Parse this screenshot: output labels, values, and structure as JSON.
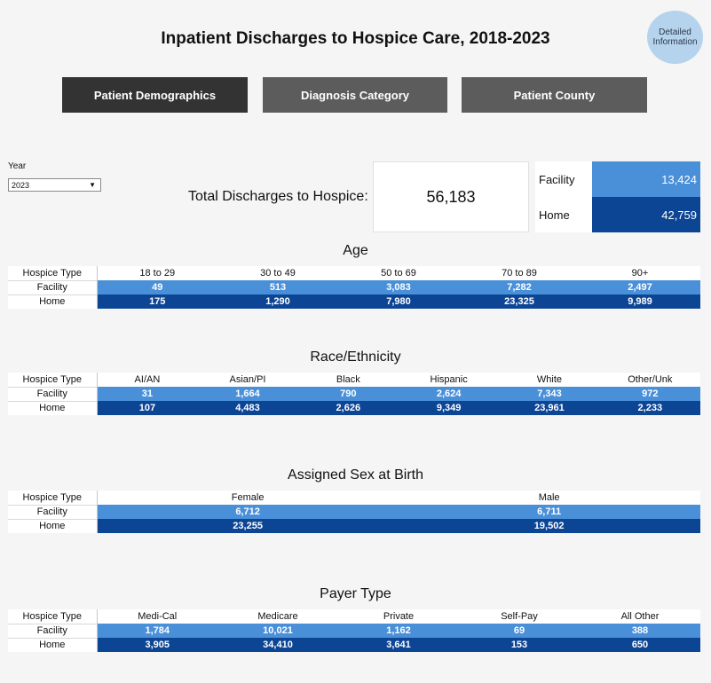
{
  "title": "Inpatient Discharges to Hospice Care, 2018-2023",
  "info_button": "Detailed Information",
  "tabs": [
    {
      "label": "Patient Demographics",
      "active": true
    },
    {
      "label": "Diagnosis Category",
      "active": false
    },
    {
      "label": "Patient County",
      "active": false
    }
  ],
  "filter": {
    "label": "Year",
    "value": "2023"
  },
  "total": {
    "label": "Total Discharges to Hospice:",
    "value": "56,183"
  },
  "split": [
    {
      "label": "Facility",
      "value": "13,424"
    },
    {
      "label": "Home",
      "value": "42,759"
    }
  ],
  "colors": {
    "facility": "#4a90d9",
    "home": "#0d4595"
  },
  "sections": [
    {
      "title": "Age",
      "header_label": "Hospice Type",
      "columns": [
        "18 to 29",
        "30 to 49",
        "50 to 69",
        "70 to 89",
        "90+"
      ],
      "rows": [
        {
          "label": "Facility",
          "values": [
            "49",
            "513",
            "3,083",
            "7,282",
            "2,497"
          ]
        },
        {
          "label": "Home",
          "values": [
            "175",
            "1,290",
            "7,980",
            "23,325",
            "9,989"
          ]
        }
      ]
    },
    {
      "title": "Race/Ethnicity",
      "header_label": "Hospice Type",
      "columns": [
        "AI/AN",
        "Asian/PI",
        "Black",
        "Hispanic",
        "White",
        "Other/Unk"
      ],
      "rows": [
        {
          "label": "Facility",
          "values": [
            "31",
            "1,664",
            "790",
            "2,624",
            "7,343",
            "972"
          ]
        },
        {
          "label": "Home",
          "values": [
            "107",
            "4,483",
            "2,626",
            "9,349",
            "23,961",
            "2,233"
          ]
        }
      ]
    },
    {
      "title": "Assigned Sex at Birth",
      "header_label": "Hospice Type",
      "columns": [
        "Female",
        "Male"
      ],
      "rows": [
        {
          "label": "Facility",
          "values": [
            "6,712",
            "6,711"
          ]
        },
        {
          "label": "Home",
          "values": [
            "23,255",
            "19,502"
          ]
        }
      ]
    },
    {
      "title": "Payer Type",
      "header_label": "Hospice Type",
      "columns": [
        "Medi-Cal",
        "Medicare",
        "Private",
        "Self-Pay",
        "All Other"
      ],
      "rows": [
        {
          "label": "Facility",
          "values": [
            "1,784",
            "10,021",
            "1,162",
            "69",
            "388"
          ]
        },
        {
          "label": "Home",
          "values": [
            "3,905",
            "34,410",
            "3,641",
            "153",
            "650"
          ]
        }
      ]
    }
  ]
}
